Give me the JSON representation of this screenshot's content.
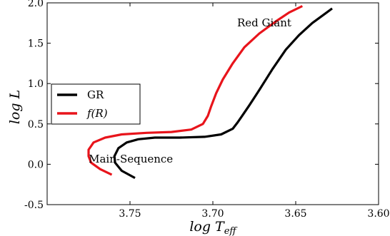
{
  "chart_data": {
    "type": "line",
    "xlabel": "log T_eff",
    "xlabel_main": "log T",
    "xlabel_sub": "eff",
    "ylabel": "log L",
    "xlim": [
      3.8,
      3.6
    ],
    "ylim": [
      -0.5,
      2.0
    ],
    "x_reversed": true,
    "x_ticks": [
      3.75,
      3.7,
      3.65,
      3.6
    ],
    "x_tick_labels": [
      "3.75",
      "3.70",
      "3.65",
      "3.60"
    ],
    "y_ticks": [
      -0.5,
      0.0,
      0.5,
      1.0,
      1.5,
      2.0
    ],
    "y_tick_labels": [
      "-0.5",
      "0.0",
      "0.5",
      "1.0",
      "1.5",
      "2.0"
    ],
    "grid": false,
    "legend_position": "center-left",
    "series": [
      {
        "name": "GR",
        "color": "#000000",
        "x": [
          3.747,
          3.755,
          3.759,
          3.7594,
          3.757,
          3.752,
          3.745,
          3.735,
          3.72,
          3.705,
          3.695,
          3.688,
          3.685,
          3.682,
          3.678,
          3.672,
          3.664,
          3.656,
          3.648,
          3.64,
          3.632,
          3.628
        ],
        "y": [
          -0.17,
          -0.08,
          0.02,
          0.1,
          0.2,
          0.27,
          0.31,
          0.33,
          0.33,
          0.34,
          0.37,
          0.44,
          0.52,
          0.61,
          0.73,
          0.92,
          1.18,
          1.42,
          1.6,
          1.75,
          1.87,
          1.93
        ]
      },
      {
        "name": "f(R)",
        "color": "#e8141b",
        "x": [
          3.761,
          3.768,
          3.7735,
          3.775,
          3.775,
          3.772,
          3.765,
          3.755,
          3.74,
          3.725,
          3.713,
          3.706,
          3.703,
          3.701,
          3.698,
          3.694,
          3.688,
          3.681,
          3.672,
          3.662,
          3.654,
          3.646
        ],
        "y": [
          -0.13,
          -0.06,
          0.02,
          0.1,
          0.18,
          0.27,
          0.33,
          0.37,
          0.39,
          0.4,
          0.43,
          0.5,
          0.6,
          0.72,
          0.88,
          1.05,
          1.25,
          1.45,
          1.62,
          1.77,
          1.88,
          1.96
        ]
      }
    ],
    "annotations": [
      {
        "text": "Red Giant",
        "x": 3.669,
        "y": 1.71
      },
      {
        "text": "Main-Sequence",
        "x": 3.7495,
        "y": 0.02
      }
    ]
  }
}
